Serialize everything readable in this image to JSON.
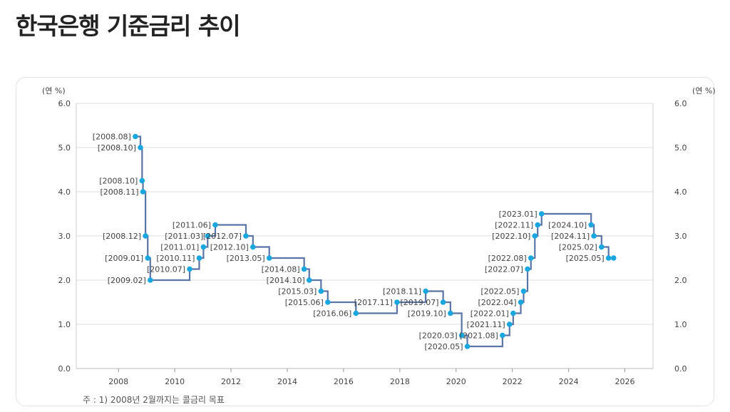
{
  "title": "한국은행 기준금리 추이",
  "note": "주 : 1) 2008년 2월까지는 콜금리 목표",
  "chart_data": {
    "type": "line",
    "step": true,
    "title": "한국은행 기준금리 추이",
    "ylabel_left": "(연 %)",
    "ylabel_right": "(연 %)",
    "xlabel": "",
    "xlim": [
      2006.5,
      2027.0
    ],
    "ylim": [
      0,
      6.0
    ],
    "x_ticks": [
      2008,
      2010,
      2012,
      2014,
      2016,
      2018,
      2020,
      2022,
      2024,
      2026
    ],
    "y_ticks": [
      "0.0",
      "1.0",
      "2.0",
      "3.0",
      "4.0",
      "5.0",
      "6.0"
    ],
    "grid": true,
    "legend": "none",
    "colors": {
      "line": "#5b74a8",
      "marker": "#1aa7e0",
      "grid": "#dddddd",
      "label": "#444444"
    },
    "points": [
      {
        "x": 2008.6,
        "y": 5.25,
        "label": "[2008.08]"
      },
      {
        "x": 2008.78,
        "y": 5.0,
        "label": "[2008.10]"
      },
      {
        "x": 2008.84,
        "y": 4.25,
        "label": "[2008.10]"
      },
      {
        "x": 2008.87,
        "y": 4.0,
        "label": "[2008.11]"
      },
      {
        "x": 2008.96,
        "y": 3.0,
        "label": "[2008.12]"
      },
      {
        "x": 2009.04,
        "y": 2.5,
        "label": "[2009.01]"
      },
      {
        "x": 2009.13,
        "y": 2.0,
        "label": "[2009.02]"
      },
      {
        "x": 2010.53,
        "y": 2.25,
        "label": "[2010.07]"
      },
      {
        "x": 2010.87,
        "y": 2.5,
        "label": "[2010.11]"
      },
      {
        "x": 2011.02,
        "y": 2.75,
        "label": "[2011.01]"
      },
      {
        "x": 2011.17,
        "y": 3.0,
        "label": "[2011.03]"
      },
      {
        "x": 2011.44,
        "y": 3.25,
        "label": "[2011.06]"
      },
      {
        "x": 2012.53,
        "y": 3.0,
        "label": "[2012.07]"
      },
      {
        "x": 2012.78,
        "y": 2.75,
        "label": "[2012.10]"
      },
      {
        "x": 2013.36,
        "y": 2.5,
        "label": "[2013.05]"
      },
      {
        "x": 2014.6,
        "y": 2.25,
        "label": "[2014.08]"
      },
      {
        "x": 2014.78,
        "y": 2.0,
        "label": "[2014.10]"
      },
      {
        "x": 2015.2,
        "y": 1.75,
        "label": "[2015.03]"
      },
      {
        "x": 2015.44,
        "y": 1.5,
        "label": "[2015.06]"
      },
      {
        "x": 2016.44,
        "y": 1.25,
        "label": "[2016.06]"
      },
      {
        "x": 2017.9,
        "y": 1.5,
        "label": "[2017.11]"
      },
      {
        "x": 2018.92,
        "y": 1.75,
        "label": "[2018.11]"
      },
      {
        "x": 2019.54,
        "y": 1.5,
        "label": "[2019.07]"
      },
      {
        "x": 2019.8,
        "y": 1.25,
        "label": "[2019.10]"
      },
      {
        "x": 2020.2,
        "y": 0.75,
        "label": "[2020.03]"
      },
      {
        "x": 2020.4,
        "y": 0.5,
        "label": "[2020.05]"
      },
      {
        "x": 2021.65,
        "y": 0.75,
        "label": "[2021.08]"
      },
      {
        "x": 2021.9,
        "y": 1.0,
        "label": "[2021.11]"
      },
      {
        "x": 2022.03,
        "y": 1.25,
        "label": "[2022.01]"
      },
      {
        "x": 2022.3,
        "y": 1.5,
        "label": "[2022.04]"
      },
      {
        "x": 2022.4,
        "y": 1.75,
        "label": "[2022.05]"
      },
      {
        "x": 2022.54,
        "y": 2.25,
        "label": "[2022.07]"
      },
      {
        "x": 2022.66,
        "y": 2.5,
        "label": "[2022.08]"
      },
      {
        "x": 2022.8,
        "y": 3.0,
        "label": "[2022.10]"
      },
      {
        "x": 2022.9,
        "y": 3.25,
        "label": "[2022.11]"
      },
      {
        "x": 2023.04,
        "y": 3.5,
        "label": "[2023.01]"
      },
      {
        "x": 2024.8,
        "y": 3.25,
        "label": "[2024.10]"
      },
      {
        "x": 2024.9,
        "y": 3.0,
        "label": "[2024.11]"
      },
      {
        "x": 2025.17,
        "y": 2.75,
        "label": "[2025.02]"
      },
      {
        "x": 2025.42,
        "y": 2.5,
        "label": "[2025.05]"
      },
      {
        "x": 2025.6,
        "y": 2.5,
        "label": ""
      }
    ]
  }
}
